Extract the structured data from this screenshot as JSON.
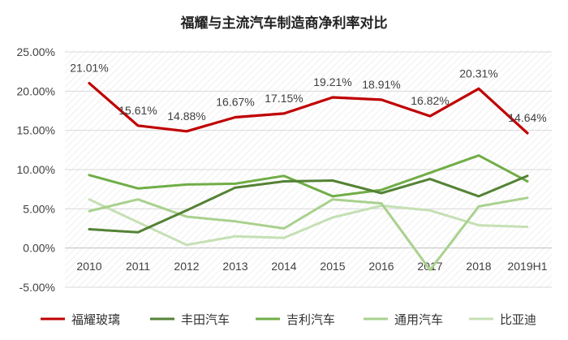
{
  "chart_data": {
    "type": "line",
    "title": "福耀与主流汽车制造商净利率对比",
    "categories": [
      "2010",
      "2011",
      "2012",
      "2013",
      "2014",
      "2015",
      "2016",
      "2017",
      "2018",
      "2019H1"
    ],
    "ylim": [
      -5,
      25
    ],
    "y_ticks": [
      25,
      20,
      15,
      10,
      5,
      0,
      -5
    ],
    "y_tick_labels": [
      "25.00%",
      "20.00%",
      "15.00%",
      "10.00%",
      "5.00%",
      "0.00%",
      "-5.00%"
    ],
    "grid": true,
    "legend_position": "bottom",
    "series": [
      {
        "name": "福耀玻璃",
        "color": "#c00000",
        "values": [
          21.01,
          15.61,
          14.88,
          16.67,
          17.15,
          19.21,
          18.91,
          16.82,
          20.31,
          14.64
        ],
        "data_labels": [
          "21.01%",
          "15.61%",
          "14.88%",
          "16.67%",
          "17.15%",
          "19.21%",
          "18.91%",
          "16.82%",
          "20.31%",
          "14.64%"
        ]
      },
      {
        "name": "丰田汽车",
        "color": "#548235",
        "values": [
          2.4,
          2.0,
          4.8,
          7.7,
          8.5,
          8.6,
          7.0,
          8.8,
          6.6,
          9.2
        ]
      },
      {
        "name": "吉利汽车",
        "color": "#70ad47",
        "values": [
          9.3,
          7.6,
          8.1,
          8.2,
          9.2,
          6.6,
          7.4,
          9.6,
          11.8,
          8.5
        ]
      },
      {
        "name": "通用汽车",
        "color": "#a9d18e",
        "values": [
          4.7,
          6.2,
          4.0,
          3.4,
          2.5,
          6.2,
          5.7,
          -2.8,
          5.3,
          6.4
        ]
      },
      {
        "name": "比亚迪",
        "color": "#c5e0b4",
        "values": [
          6.2,
          3.3,
          0.4,
          1.5,
          1.3,
          3.9,
          5.4,
          4.8,
          2.9,
          2.7
        ]
      }
    ]
  }
}
